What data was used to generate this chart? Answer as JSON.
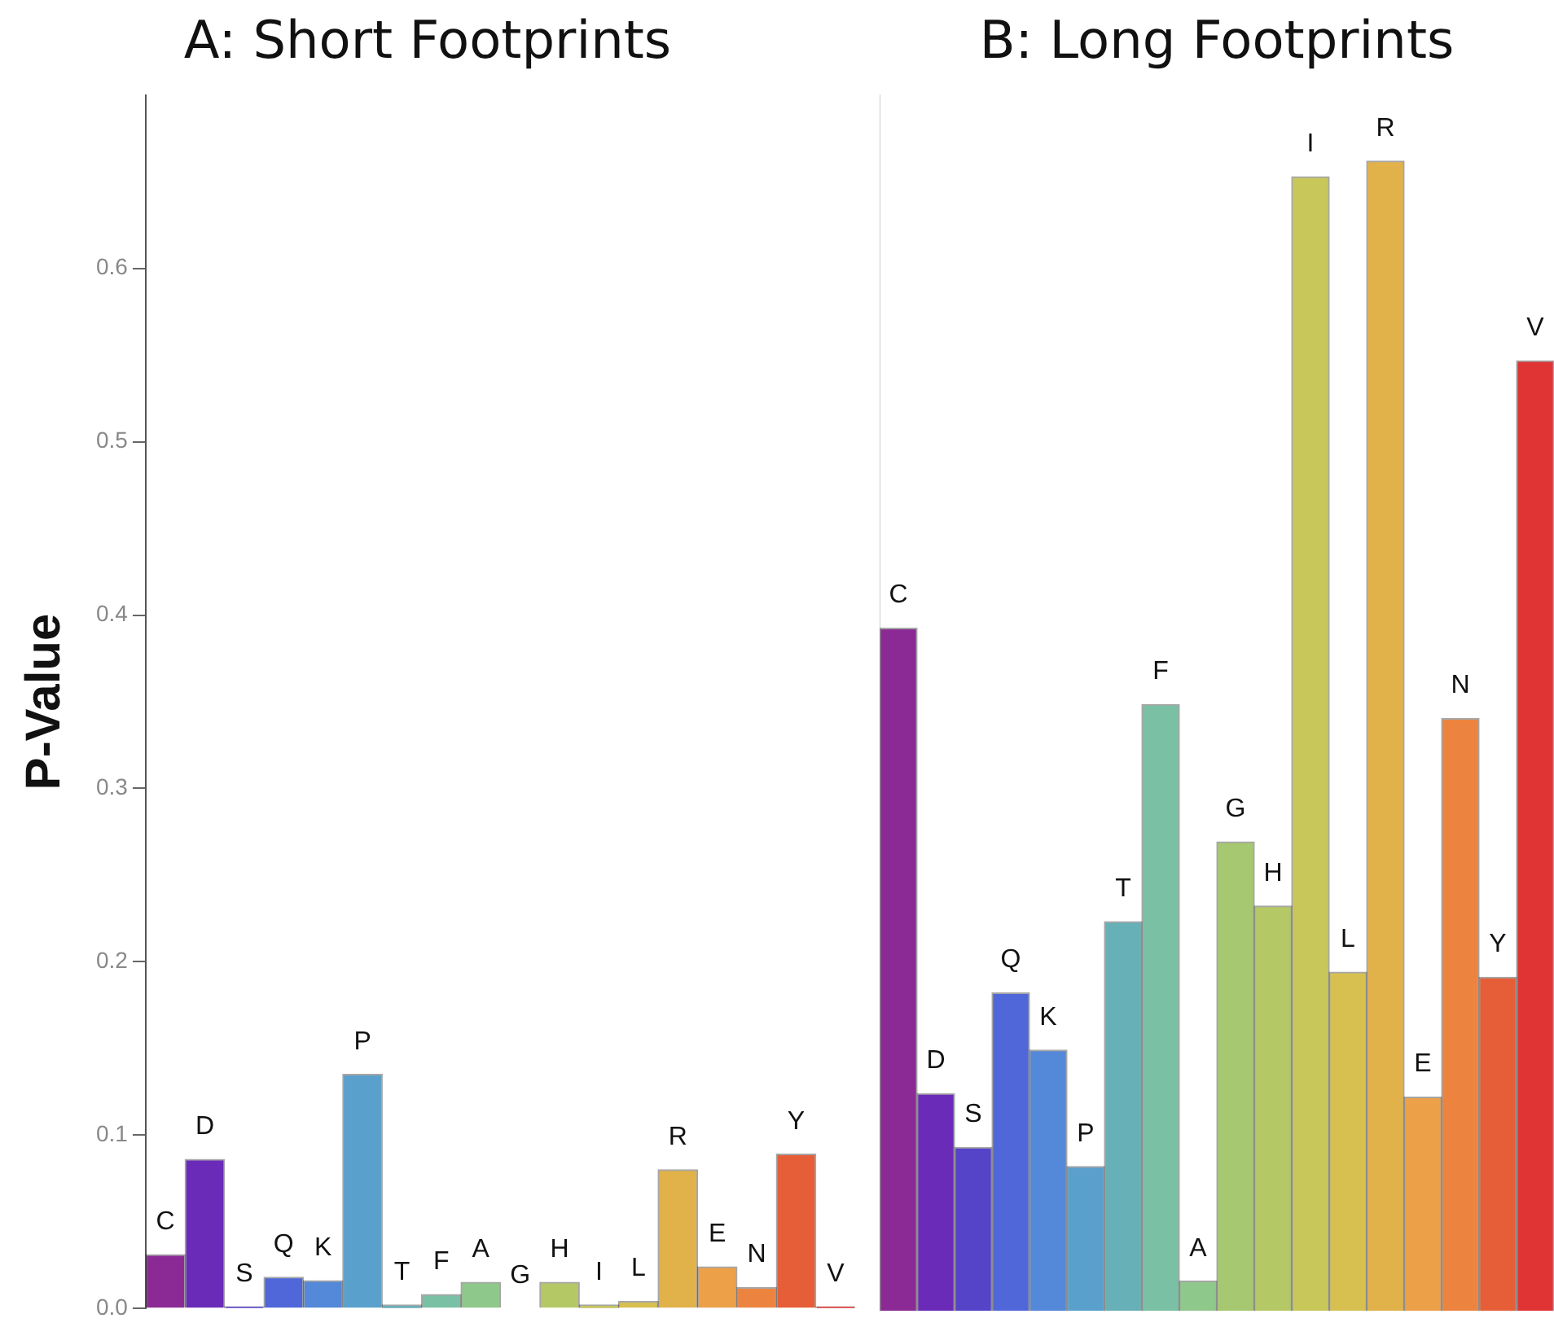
{
  "chart_data": [
    {
      "type": "bar",
      "title": "A: Short Footprints",
      "ylabel": "P-Value",
      "categories": [
        "C",
        "D",
        "S",
        "Q",
        "K",
        "P",
        "T",
        "F",
        "A",
        "G",
        "H",
        "I",
        "L",
        "R",
        "E",
        "N",
        "Y",
        "V"
      ],
      "values": [
        0.031,
        0.086,
        0.001,
        0.018,
        0.016,
        0.135,
        0.002,
        0.008,
        0.015,
        0,
        0.015,
        0.002,
        0.004,
        0.08,
        0.024,
        0.012,
        0.089,
        0.001
      ],
      "colors": [
        "#8b2a94",
        "#6a2bb8",
        "#5543c8",
        "#4f67d8",
        "#5488d8",
        "#5aa0cc",
        "#68b0b8",
        "#7ac0a4",
        "#8ec88a",
        "#a6c870",
        "#b4c865",
        "#c8c85a",
        "#d8c050",
        "#e2b24a",
        "#eca048",
        "#ec8440",
        "#e65e38",
        "#e03434"
      ],
      "ylim": [
        0,
        0.7
      ],
      "yticks": [
        {
          "value": 0,
          "label": "0.0"
        },
        {
          "value": 0.1,
          "label": "0.1"
        },
        {
          "value": 0.2,
          "label": "0.2"
        },
        {
          "value": 0.3,
          "label": "0.3"
        },
        {
          "value": 0.4,
          "label": "0.4"
        },
        {
          "value": 0.5,
          "label": "0.5"
        },
        {
          "value": 0.6,
          "label": "0.6"
        }
      ]
    },
    {
      "type": "bar",
      "title": "B: Long Footprints",
      "categories": [
        "C",
        "D",
        "S",
        "Q",
        "K",
        "P",
        "T",
        "F",
        "A",
        "G",
        "H",
        "I",
        "L",
        "R",
        "E",
        "N",
        "Y",
        "V"
      ],
      "values": [
        0.393,
        0.125,
        0.094,
        0.183,
        0.15,
        0.083,
        0.224,
        0.349,
        0.017,
        0.27,
        0.233,
        0.653,
        0.195,
        0.662,
        0.123,
        0.341,
        0.192,
        0.547
      ],
      "colors": [
        "#8b2a94",
        "#6a2bb8",
        "#5543c8",
        "#4f67d8",
        "#5488d8",
        "#5aa0cc",
        "#68b0b8",
        "#7ac0a4",
        "#8ec88a",
        "#a6c870",
        "#b4c865",
        "#c8c85a",
        "#d8c050",
        "#e2b24a",
        "#eca048",
        "#ec8440",
        "#e65e38",
        "#e03434"
      ],
      "ylim": [
        0,
        0.7
      ],
      "tick_labels": "x"
    }
  ]
}
